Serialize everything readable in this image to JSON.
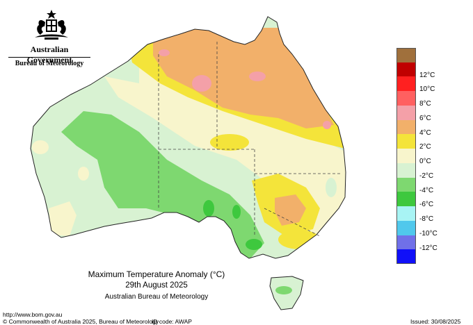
{
  "header": {
    "government": "Australian Government",
    "bureau": "Bureau of Meteorology"
  },
  "map": {
    "title": "Maximum Temperature Anomaly (°C)",
    "date": "29th August 2025",
    "organisation": "Australian Bureau of Meteorology"
  },
  "legend": {
    "items": [
      {
        "label": "",
        "color": "#a0703c"
      },
      {
        "label": "12°C",
        "color": "#c00000"
      },
      {
        "label": "10°C",
        "color": "#ff2020"
      },
      {
        "label": "8°C",
        "color": "#ff6060"
      },
      {
        "label": "6°C",
        "color": "#f4a0a8"
      },
      {
        "label": "4°C",
        "color": "#f2b06a"
      },
      {
        "label": "2°C",
        "color": "#f4e43a"
      },
      {
        "label": "0°C",
        "color": "#f8f5cc"
      },
      {
        "label": "-2°C",
        "color": "#d8f2d2"
      },
      {
        "label": "-4°C",
        "color": "#7ed870"
      },
      {
        "label": "-6°C",
        "color": "#3ec83e"
      },
      {
        "label": "-8°C",
        "color": "#a8f4f4"
      },
      {
        "label": "-10°C",
        "color": "#50c8ec"
      },
      {
        "label": "-12°C",
        "color": "#7070e8"
      },
      {
        "label": "",
        "color": "#1010f8"
      }
    ]
  },
  "footer": {
    "url": "http://www.bom.gov.au",
    "copyright": "© Commonwealth of Australia 2025, Bureau of Meteorology",
    "id_code": "ID code: AWAP",
    "issued": "Issued: 30/08/2025"
  }
}
